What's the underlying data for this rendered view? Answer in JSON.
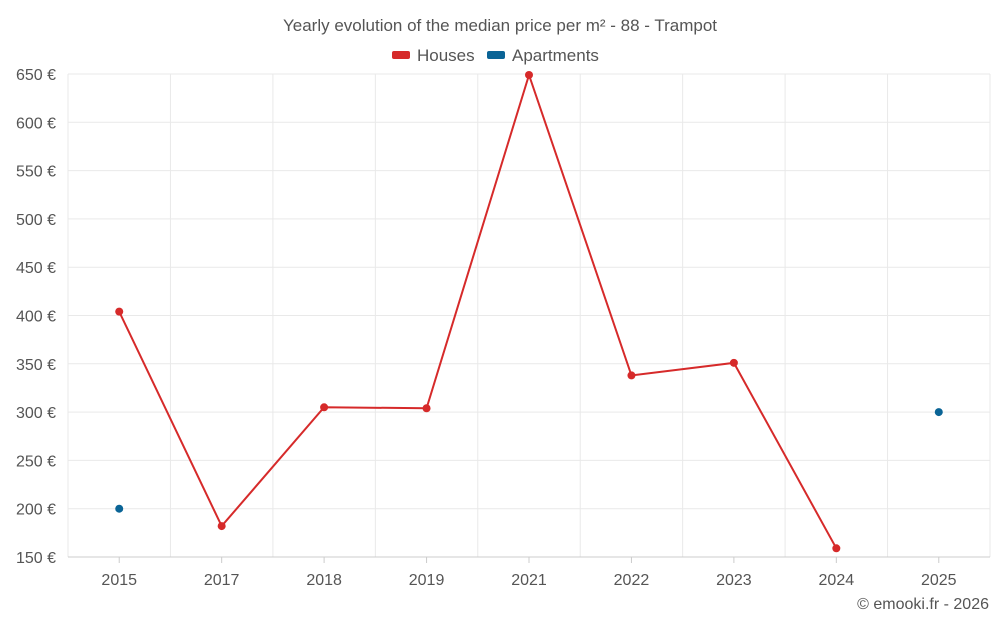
{
  "chart_data": {
    "type": "line",
    "title": "Yearly evolution of the median price per m² - 88 - Trampot",
    "categories": [
      "2015",
      "2017",
      "2018",
      "2019",
      "2021",
      "2022",
      "2023",
      "2024",
      "2025"
    ],
    "y_ticks": [
      "150 €",
      "200 €",
      "250 €",
      "300 €",
      "350 €",
      "400 €",
      "450 €",
      "500 €",
      "550 €",
      "600 €",
      "650 €"
    ],
    "ylim": [
      150,
      650
    ],
    "ytick_step": 50,
    "xlabel": "",
    "ylabel": "",
    "legend_position": "top-center",
    "grid": true,
    "series": [
      {
        "name": "Houses",
        "color": "#d62a2a",
        "values": [
          404,
          182,
          305,
          304,
          649,
          338,
          351,
          159,
          null
        ]
      },
      {
        "name": "Apartments",
        "color": "#0a6496",
        "values": [
          200,
          null,
          null,
          null,
          null,
          null,
          null,
          null,
          300
        ]
      }
    ]
  },
  "credit": "© emooki.fr - 2026"
}
